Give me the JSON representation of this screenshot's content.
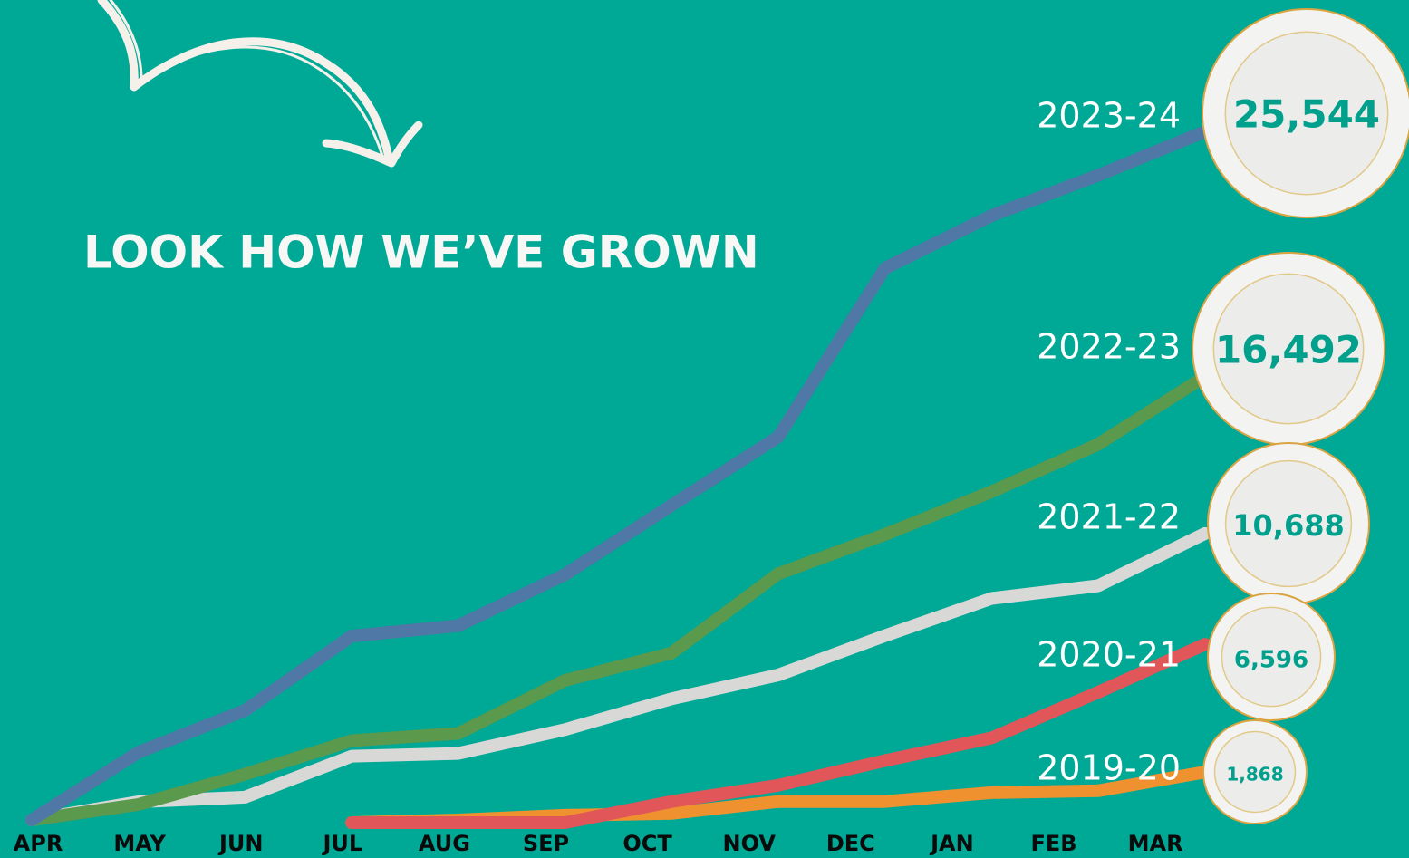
{
  "chart_data": {
    "type": "line",
    "title": "LOOK HOW WE’VE GROWN",
    "categories": [
      "APR",
      "MAY",
      "JUN",
      "JUL",
      "AUG",
      "SEP",
      "OCT",
      "NOV",
      "DEC",
      "JAN",
      "FEB",
      "MAR"
    ],
    "ylim": [
      0,
      28000
    ],
    "series": [
      {
        "name": "2023-24",
        "color": "#4f78a6",
        "values": [
          100,
          2600,
          4150,
          6900,
          7280,
          9170,
          11730,
          14260,
          20490,
          22440,
          23930,
          25544
        ],
        "value_labels": [
          null,
          null,
          null,
          null,
          null,
          null,
          null,
          null,
          null,
          null,
          null,
          "25,544"
        ]
      },
      {
        "name": "2022-23",
        "color": "#5b994d",
        "values": [
          100,
          670,
          1790,
          3030,
          3300,
          5260,
          6270,
          9200,
          10650,
          12230,
          13990,
          16492
        ],
        "value_labels": [
          null,
          null,
          null,
          null,
          null,
          null,
          null,
          null,
          null,
          null,
          null,
          "16,492"
        ]
      },
      {
        "name": "2021-22",
        "color": "#d8d8d6",
        "values": [
          100,
          770,
          940,
          2460,
          2560,
          3440,
          4580,
          5460,
          6910,
          8290,
          8760,
          10688
        ],
        "value_labels": [
          null,
          null,
          null,
          null,
          null,
          null,
          null,
          null,
          null,
          null,
          null,
          "10,688"
        ]
      },
      {
        "name": "2020-21",
        "color": "#e05659",
        "values": [
          null,
          null,
          null,
          0,
          0,
          0,
          780,
          1380,
          2290,
          3130,
          4820,
          6596
        ],
        "value_labels": [
          null,
          null,
          null,
          null,
          null,
          null,
          null,
          null,
          null,
          null,
          null,
          "6,596"
        ]
      },
      {
        "name": "2019-20",
        "color": "#ef912f",
        "values": [
          null,
          null,
          null,
          0,
          100,
          270,
          340,
          780,
          780,
          1110,
          1180,
          1868
        ],
        "value_labels": [
          null,
          null,
          null,
          null,
          null,
          null,
          null,
          null,
          null,
          null,
          null,
          "1,868"
        ]
      }
    ]
  }
}
